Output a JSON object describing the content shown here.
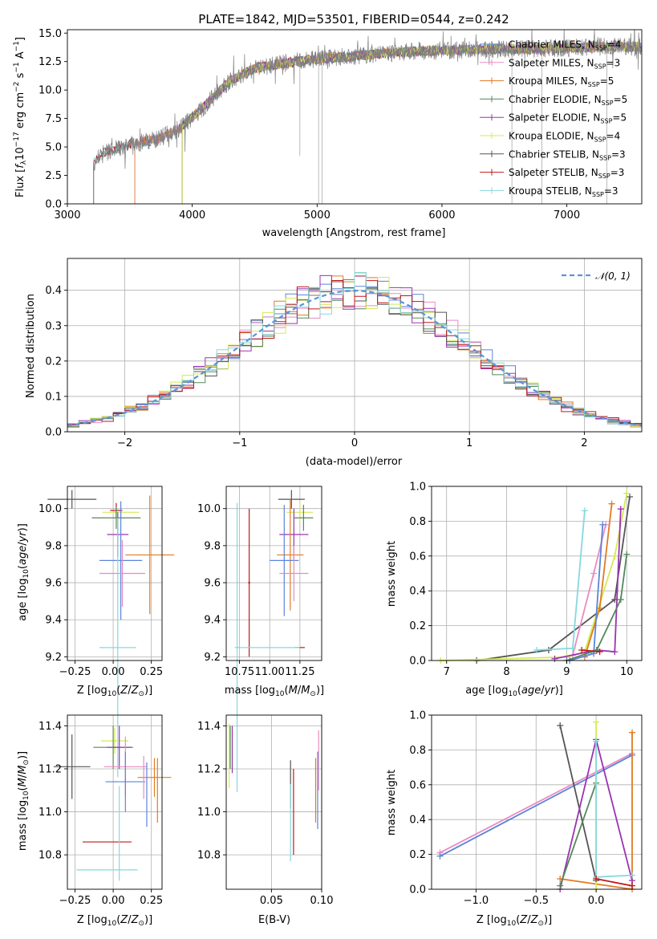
{
  "colors": {
    "chabrier_miles": "#5b84d9",
    "salpeter_miles": "#e88bc1",
    "kroupa_miles": "#e07b22",
    "chabrier_elodie": "#55885a",
    "salpeter_elodie": "#9a33b3",
    "kroupa_elodie": "#d4ea57",
    "chabrier_stelib": "#555555",
    "salpeter_stelib": "#c0181c",
    "kroupa_stelib": "#85d8dd",
    "gauss": "#5b93d9"
  },
  "chart_data": [
    {
      "id": "spectrum",
      "type": "line",
      "title": "PLATE=1842, MJD=53501, FIBERID=0544, z=0.242",
      "xlabel": "wavelength [Angstrom, rest frame]",
      "ylabel": "Flux [fλ10⁻¹⁷ erg cm⁻² s⁻¹ A⁻¹]",
      "xlim": [
        3000,
        7600
      ],
      "ylim": [
        0,
        15.3
      ],
      "xticks": [
        "3000",
        "4000",
        "5000",
        "6000",
        "7000"
      ],
      "yticks": [
        "0.0",
        "2.5",
        "5.0",
        "7.5",
        "10.0",
        "12.5",
        "15.0"
      ],
      "legend_position": "top-right",
      "legend": [
        {
          "key": "chabrier_miles",
          "model": "Chabrier MILES, N",
          "n": "4"
        },
        {
          "key": "salpeter_miles",
          "model": "Salpeter MILES, N",
          "n": "3"
        },
        {
          "key": "kroupa_miles",
          "model": "Kroupa MILES, N",
          "n": "5"
        },
        {
          "key": "chabrier_elodie",
          "model": "Chabrier ELODIE, N",
          "n": "5"
        },
        {
          "key": "salpeter_elodie",
          "model": "Salpeter ELODIE, N",
          "n": "5"
        },
        {
          "key": "kroupa_elodie",
          "model": "Kroupa ELODIE, N",
          "n": "4"
        },
        {
          "key": "chabrier_stelib",
          "model": "Chabrier STELIB, N",
          "n": "3"
        },
        {
          "key": "salpeter_stelib",
          "model": "Salpeter STELIB, N",
          "n": "3"
        },
        {
          "key": "kroupa_stelib",
          "model": "Kroupa STELIB, N",
          "n": "3"
        }
      ],
      "ssp_subscript": "SSP",
      "continuum": {
        "x": [
          3200,
          3300,
          3500,
          3700,
          3900,
          4100,
          4300,
          4500,
          4700,
          4900,
          5100,
          5300,
          5500,
          5800,
          6100,
          6400,
          6700,
          7000,
          7300
        ],
        "y": [
          3.6,
          4.5,
          5.2,
          5.6,
          6.6,
          8.6,
          10.8,
          11.9,
          12.3,
          12.6,
          12.8,
          13.0,
          13.2,
          13.4,
          13.5,
          13.6,
          13.6,
          13.7,
          13.8
        ]
      },
      "model_starts": {
        "chabrier_miles": 3540,
        "salpeter_miles": 3540,
        "kroupa_miles": 3540,
        "chabrier_elodie": 3920,
        "salpeter_elodie": 3920,
        "kroupa_elodie": 3920,
        "chabrier_stelib": 3210,
        "salpeter_stelib": 3210,
        "kroupa_stelib": 3210
      },
      "data_start": 3210,
      "absorption": [
        {
          "x": 4862,
          "y": 4.2
        },
        {
          "x": 5012,
          "y": 0.0
        },
        {
          "x": 5040,
          "y": 0.0
        },
        {
          "x": 6560,
          "y": 0.0
        },
        {
          "x": 6800,
          "y": 0.0
        },
        {
          "x": 7320,
          "y": 0.0
        }
      ]
    },
    {
      "id": "residuals",
      "type": "bar",
      "xlabel": "(data-model)/error",
      "ylabel": "Normed distribution",
      "xlim": [
        -2.5,
        2.5
      ],
      "ylim": [
        0,
        0.49
      ],
      "xticks": [
        -2,
        -1,
        0,
        1,
        2
      ],
      "xtick_labels": [
        "−2",
        "−1",
        "0",
        "1",
        "2"
      ],
      "yticks": [
        0.0,
        0.1,
        0.2,
        0.3,
        0.4
      ],
      "ytick_labels": [
        "0.0",
        "0.1",
        "0.2",
        "0.3",
        "0.4"
      ],
      "grid": true,
      "legend": "𝒩(0, 1)",
      "bin_width": 0.1
    },
    {
      "id": "age_vs_Z",
      "type": "scatter",
      "xlabel": "Z [log₁₀(Z/Z⊙)]",
      "ylabel": "age  [log₁₀(age/yr)]",
      "xlim": [
        -0.3,
        0.32
      ],
      "ylim": [
        9.18,
        10.12
      ],
      "xticks": [
        "−0.25",
        "0.00",
        "0.25"
      ],
      "yticks": [
        "9.2",
        "9.4",
        "9.6",
        "9.8",
        "10.0"
      ],
      "points": [
        {
          "key": "chabrier_stelib",
          "x": -0.27,
          "xerr": 0.16,
          "y": 10.05,
          "yerr": 0.05
        },
        {
          "key": "kroupa_elodie",
          "x": 0.05,
          "xerr": 0.12,
          "y": 9.98,
          "yerr": 0.04
        },
        {
          "key": "salpeter_stelib",
          "x": 0.02,
          "xerr": 0.04,
          "y": 9.99,
          "yerr": 0.04
        },
        {
          "key": "chabrier_elodie",
          "x": 0.02,
          "xerr": 0.16,
          "y": 9.95,
          "yerr": 0.06
        },
        {
          "key": "salpeter_elodie",
          "x": 0.03,
          "xerr": 0.07,
          "y": 9.86,
          "yerr": 0.12
        },
        {
          "key": "kroupa_miles",
          "x": 0.24,
          "xerr": 0.16,
          "y": 9.75,
          "yerr": 0.32
        },
        {
          "key": "chabrier_miles",
          "x": 0.05,
          "xerr": 0.14,
          "y": 9.72,
          "yerr": 0.32
        },
        {
          "key": "salpeter_miles",
          "x": 0.06,
          "xerr": 0.15,
          "y": 9.65,
          "yerr": 0.18
        },
        {
          "key": "kroupa_stelib",
          "x": 0.03,
          "xerr": 0.12,
          "y": 9.25,
          "yerr": 0.7
        }
      ]
    },
    {
      "id": "age_vs_mass",
      "type": "scatter",
      "xlabel": "mass [log₁₀(M/M⊙)]",
      "ylabel": "",
      "xlim": [
        10.64,
        11.43
      ],
      "ylim": [
        9.18,
        10.12
      ],
      "xticks": [
        "10.75",
        "11.00",
        "11.25"
      ],
      "yticks": [
        "9.2",
        "9.4",
        "9.6",
        "9.8",
        "10.0"
      ],
      "points": [
        {
          "key": "chabrier_stelib",
          "x": 11.18,
          "xerr": 0.11,
          "y": 10.05,
          "yerr": 0.05
        },
        {
          "key": "kroupa_elodie",
          "x": 11.25,
          "xerr": 0.11,
          "y": 9.98,
          "yerr": 0.05
        },
        {
          "key": "chabrier_elodie",
          "x": 11.28,
          "xerr": 0.08,
          "y": 9.95,
          "yerr": 0.07
        },
        {
          "key": "salpeter_elodie",
          "x": 11.2,
          "xerr": 0.12,
          "y": 9.86,
          "yerr": 0.14
        },
        {
          "key": "kroupa_miles",
          "x": 11.17,
          "xerr": 0.11,
          "y": 9.75,
          "yerr": 0.3
        },
        {
          "key": "chabrier_miles",
          "x": 11.12,
          "xerr": 0.12,
          "y": 9.72,
          "yerr": 0.3
        },
        {
          "key": "salpeter_miles",
          "x": 11.2,
          "xerr": 0.12,
          "y": 9.65,
          "yerr": 0.15
        },
        {
          "key": "salpeter_stelib",
          "x": 10.83,
          "xerr": 0.01,
          "y": 9.6,
          "yerr": 0.4
        },
        {
          "key": "kroupa_stelib",
          "x": 10.73,
          "xerr": 0.02,
          "y": 9.25,
          "yerr": 0.78
        },
        {
          "key": "salpeter_stelib",
          "x": 11.25,
          "xerr": 0.04,
          "y": 9.25,
          "yerr": 0.0
        },
        {
          "key": "kroupa_stelib",
          "x": 10.99,
          "xerr": 0.26,
          "y": 9.25,
          "yerr": 0.0
        }
      ]
    },
    {
      "id": "weight_vs_age",
      "type": "line",
      "xlabel": "age  [log₁₀(age/yr)]",
      "ylabel": "mass weight",
      "xlim": [
        6.75,
        10.25
      ],
      "ylim": [
        0,
        1.0
      ],
      "xticks": [
        7,
        8,
        9,
        10
      ],
      "yticks": [
        0.0,
        0.2,
        0.4,
        0.6,
        0.8,
        1.0
      ],
      "ytick_labels": [
        "0.0",
        "0.2",
        "0.4",
        "0.6",
        "0.8",
        "1.0"
      ],
      "grid": true,
      "series": [
        {
          "key": "chabrier_stelib",
          "x": [
            7.5,
            8.7,
            9.8,
            10.05
          ],
          "y": [
            0.0,
            0.06,
            0.35,
            0.94
          ]
        },
        {
          "key": "kroupa_elodie",
          "x": [
            6.9,
            9.0,
            9.3,
            9.8,
            10.0
          ],
          "y": [
            0.0,
            0.02,
            0.05,
            0.6,
            0.96
          ]
        },
        {
          "key": "kroupa_miles",
          "x": [
            9.3,
            9.55,
            9.75
          ],
          "y": [
            0.02,
            0.3,
            0.9
          ]
        },
        {
          "key": "salpeter_miles",
          "x": [
            9.1,
            9.45,
            9.65
          ],
          "y": [
            0.03,
            0.5,
            0.78
          ]
        },
        {
          "key": "chabrier_miles",
          "x": [
            9.05,
            9.45,
            9.6
          ],
          "y": [
            0.0,
            0.04,
            0.78
          ]
        },
        {
          "key": "salpeter_elodie",
          "x": [
            8.8,
            9.5,
            9.8,
            9.9
          ],
          "y": [
            0.01,
            0.06,
            0.05,
            0.87
          ]
        },
        {
          "key": "chabrier_elodie",
          "x": [
            9.0,
            9.5,
            9.9,
            10.0
          ],
          "y": [
            0.0,
            0.06,
            0.35,
            0.61
          ]
        },
        {
          "key": "kroupa_stelib",
          "x": [
            8.5,
            9.1,
            9.3
          ],
          "y": [
            0.06,
            0.07,
            0.86
          ]
        },
        {
          "key": "salpeter_stelib",
          "x": [
            9.25,
            9.55
          ],
          "y": [
            0.06,
            0.05
          ]
        }
      ]
    },
    {
      "id": "mass_vs_Z",
      "type": "scatter",
      "xlabel": "Z [log₁₀(Z/Z⊙)]",
      "ylabel": "mass [log₁₀(M/M⊙)]",
      "xlim": [
        -0.3,
        0.32
      ],
      "ylim": [
        10.64,
        11.45
      ],
      "xticks": [
        "−0.25",
        "0.00",
        "0.25"
      ],
      "yticks": [
        "10.8",
        "11.0",
        "11.2",
        "11.4"
      ],
      "points": [
        {
          "key": "chabrier_stelib",
          "x": -0.27,
          "xerr": 0.12,
          "y": 11.21,
          "yerr": 0.15
        },
        {
          "key": "kroupa_elodie",
          "x": 0.01,
          "xerr": 0.09,
          "y": 11.33,
          "yerr": 0.06
        },
        {
          "key": "chabrier_elodie",
          "x": 0.0,
          "xerr": 0.13,
          "y": 11.3,
          "yerr": 0.1
        },
        {
          "key": "salpeter_elodie",
          "x": 0.04,
          "xerr": 0.08,
          "y": 11.3,
          "yerr": 0.1
        },
        {
          "key": "salpeter_miles",
          "x": 0.08,
          "xerr": 0.14,
          "y": 11.21,
          "yerr": 0.14
        },
        {
          "key": "kroupa_miles",
          "x": 0.27,
          "xerr": 0.11,
          "y": 11.16,
          "yerr": 0.09
        },
        {
          "key": "chabrier_miles",
          "x": 0.08,
          "xerr": 0.13,
          "y": 11.14,
          "yerr": 0.14
        },
        {
          "key": "salpeter_stelib",
          "x": -0.04,
          "xerr": 0.16,
          "y": 10.86,
          "yerr": 0.0
        },
        {
          "key": "kroupa_stelib",
          "x": -0.04,
          "xerr": 0.2,
          "y": 10.73,
          "yerr": 0.0
        },
        {
          "key": "kroupa_stelib",
          "x": 0.04,
          "xerr": 0.0,
          "y": 10.9,
          "yerr": 0.22
        },
        {
          "key": "chabrier_miles",
          "x": 0.22,
          "xerr": 0.0,
          "y": 11.08,
          "yerr": 0.15
        },
        {
          "key": "salpeter_miles",
          "x": 0.2,
          "xerr": 0.0,
          "y": 11.16,
          "yerr": 0.1
        },
        {
          "key": "kroupa_miles",
          "x": 0.29,
          "xerr": 0.0,
          "y": 11.1,
          "yerr": 0.15
        }
      ]
    },
    {
      "id": "mass_vs_EBV",
      "type": "scatter",
      "xlabel": "E(B-V)",
      "ylabel": "",
      "xlim": [
        0.005,
        0.1
      ],
      "ylim": [
        10.64,
        11.45
      ],
      "xticks": [
        "0.05",
        "0.10"
      ],
      "yticks": [
        "10.8",
        "11.0",
        "11.2",
        "11.4"
      ],
      "points": [
        {
          "key": "kroupa_elodie",
          "x": 0.008,
          "y": 11.26,
          "yerr": 0.15
        },
        {
          "key": "chabrier_elodie",
          "x": 0.009,
          "y": 11.3,
          "yerr": 0.1
        },
        {
          "key": "salpeter_elodie",
          "x": 0.011,
          "y": 11.29,
          "yerr": 0.11
        },
        {
          "key": "chabrier_stelib",
          "x": 0.069,
          "y": 11.13,
          "yerr": 0.11
        },
        {
          "key": "salpeter_stelib",
          "x": 0.072,
          "y": 11.0,
          "yerr": 0.2
        },
        {
          "key": "kroupa_stelib",
          "x": 0.069,
          "y": 10.95,
          "yerr": 0.18
        },
        {
          "key": "kroupa_miles",
          "x": 0.094,
          "y": 11.1,
          "yerr": 0.15
        },
        {
          "key": "salpeter_miles",
          "x": 0.097,
          "y": 11.24,
          "yerr": 0.14
        },
        {
          "key": "chabrier_miles",
          "x": 0.096,
          "y": 11.1,
          "yerr": 0.18
        }
      ]
    },
    {
      "id": "weight_vs_Z",
      "type": "line",
      "xlabel": "Z [log₁₀(Z/Z⊙)]",
      "ylabel": "mass weight",
      "xlim": [
        -1.37,
        0.38
      ],
      "ylim": [
        0,
        1.0
      ],
      "xticks": [
        -1.0,
        -0.5,
        0.0
      ],
      "xtick_labels": [
        "−1.0",
        "−0.5",
        "0.0"
      ],
      "yticks": [
        0.0,
        0.2,
        0.4,
        0.6,
        0.8,
        1.0
      ],
      "ytick_labels": [
        "0.0",
        "0.2",
        "0.4",
        "0.6",
        "0.8",
        "1.0"
      ],
      "grid": true,
      "series": [
        {
          "key": "salpeter_miles",
          "x": [
            -1.3,
            0.3
          ],
          "y": [
            0.21,
            0.78
          ]
        },
        {
          "key": "chabrier_miles",
          "x": [
            -1.3,
            0.3
          ],
          "y": [
            0.19,
            0.77
          ]
        },
        {
          "key": "chabrier_stelib",
          "x": [
            -0.3,
            0.0
          ],
          "y": [
            0.94,
            0.05
          ]
        },
        {
          "key": "kroupa_miles",
          "x": [
            -0.3,
            0.3,
            0.3
          ],
          "y": [
            0.06,
            0.0,
            0.9
          ]
        },
        {
          "key": "salpeter_elodie",
          "x": [
            -0.3,
            0.0,
            0.3
          ],
          "y": [
            0.0,
            0.86,
            0.05
          ]
        },
        {
          "key": "chabrier_elodie",
          "x": [
            -0.3,
            0.0
          ],
          "y": [
            0.02,
            0.61
          ]
        },
        {
          "key": "kroupa_elodie",
          "x": [
            0.0,
            0.0
          ],
          "y": [
            0.0,
            0.96
          ]
        },
        {
          "key": "kroupa_stelib",
          "x": [
            0.0,
            0.0,
            0.3
          ],
          "y": [
            0.85,
            0.07,
            0.08
          ]
        },
        {
          "key": "salpeter_stelib",
          "x": [
            0.0,
            0.3
          ],
          "y": [
            0.06,
            0.02
          ]
        }
      ]
    }
  ]
}
